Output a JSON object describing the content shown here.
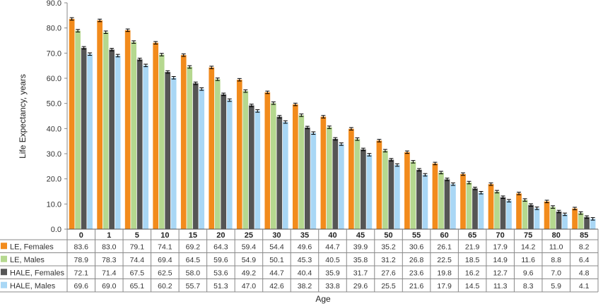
{
  "chart_data": {
    "type": "bar",
    "ylabel": "Life Expectancy, years",
    "xlabel": "Age",
    "ylim": [
      0,
      90
    ],
    "yticks": [
      "0.0",
      "10.0",
      "20.0",
      "30.0",
      "40.0",
      "50.0",
      "60.0",
      "70.0",
      "80.0",
      "90.0"
    ],
    "grid": false,
    "legend": "data-table-left",
    "categories": [
      "0",
      "1",
      "5",
      "10",
      "15",
      "20",
      "25",
      "30",
      "35",
      "40",
      "45",
      "50",
      "55",
      "60",
      "65",
      "70",
      "75",
      "80",
      "85"
    ],
    "series": [
      {
        "name": "LE, Females",
        "color": "#F28B1C",
        "values": [
          "83.6",
          "83.0",
          "79.1",
          "74.1",
          "69.2",
          "64.3",
          "59.4",
          "54.4",
          "49.6",
          "44.7",
          "39.9",
          "35.2",
          "30.6",
          "26.1",
          "21.9",
          "17.9",
          "14.2",
          "11.0",
          "8.2"
        ]
      },
      {
        "name": "LE, Males",
        "color": "#B5D88F",
        "values": [
          "78.9",
          "78.3",
          "74.4",
          "69.4",
          "64.5",
          "59.6",
          "54.9",
          "50.1",
          "45.3",
          "40.5",
          "35.8",
          "31.2",
          "26.8",
          "22.5",
          "18.5",
          "14.9",
          "11.6",
          "8.8",
          "6.4"
        ]
      },
      {
        "name": "HALE, Females",
        "color": "#555555",
        "values": [
          "72.1",
          "71.4",
          "67.5",
          "62.5",
          "58.0",
          "53.6",
          "49.2",
          "44.7",
          "40.4",
          "35.9",
          "31.7",
          "27.6",
          "23.6",
          "19.8",
          "16.2",
          "12.7",
          "9.6",
          "7.0",
          "4.8"
        ]
      },
      {
        "name": "HALE, Males",
        "color": "#A9D7F5",
        "values": [
          "69.6",
          "69.0",
          "65.1",
          "60.2",
          "55.7",
          "51.3",
          "47.0",
          "42.6",
          "38.2",
          "33.8",
          "29.6",
          "25.5",
          "21.6",
          "17.9",
          "14.5",
          "11.3",
          "8.3",
          "5.9",
          "4.1"
        ]
      }
    ],
    "error_bars": true
  }
}
